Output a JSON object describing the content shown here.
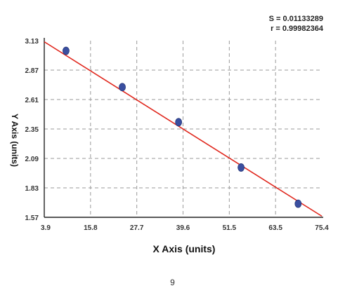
{
  "stats": {
    "s_line": "S = 0.01133289",
    "r_line": "r = 0.99982364"
  },
  "page_number": "9",
  "chart_data": {
    "type": "scatter",
    "xlabel": "X Axis (units)",
    "ylabel": "Y Axis (units)",
    "x_ticks": [
      "3.9",
      "15.8",
      "27.7",
      "39.6",
      "51.5",
      "63.5",
      "75.4"
    ],
    "y_ticks": [
      "3.13",
      "2.87",
      "2.61",
      "2.35",
      "2.09",
      "1.83",
      "1.57"
    ],
    "xlim": [
      3.9,
      75.4
    ],
    "ylim": [
      1.57,
      3.13
    ],
    "grid": true,
    "series": [
      {
        "x": [
          9.5,
          24.0,
          38.5,
          54.6,
          69.3
        ],
        "y": [
          3.04,
          2.72,
          2.41,
          2.01,
          1.69
        ]
      }
    ],
    "fit_line": {
      "x": [
        3.9,
        75.4
      ],
      "y": [
        3.12,
        1.58
      ]
    },
    "colors": {
      "points": "#3a4fa0",
      "fit": "#e0261c",
      "grid": "#9a9a9a"
    }
  }
}
